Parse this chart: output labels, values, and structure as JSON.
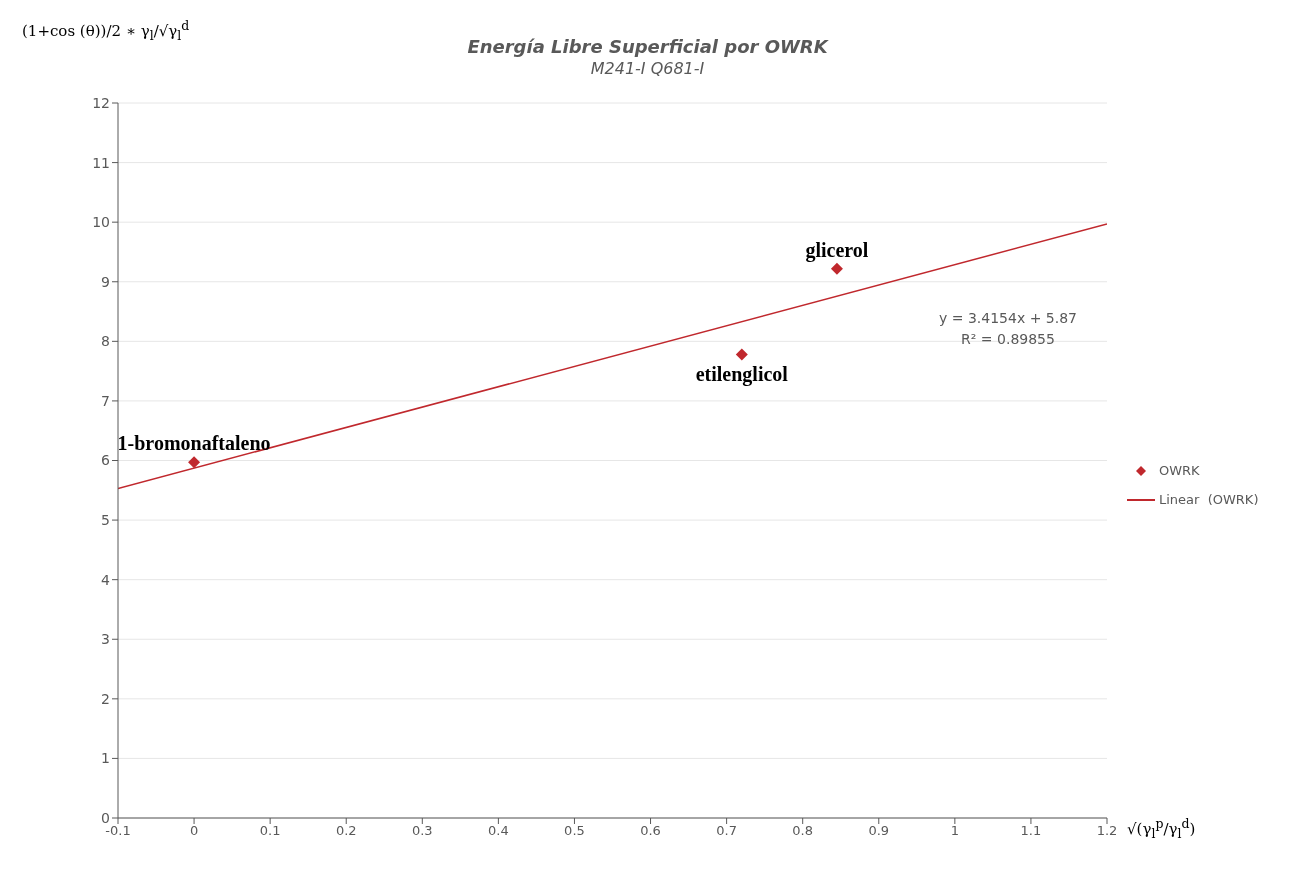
{
  "chart_data": {
    "type": "scatter",
    "title": "Energía Libre Superficial por OWRK",
    "subtitle": "M241-I  Q681-I",
    "xlabel": "√(γ$_{l}$$^{p}$/γ$_{l}$$^{d}$)",
    "ylabel": "(1+cos (θ))/2 ∗ γ$_{l}$/√γ$_{l}$$^{d}$",
    "series": [
      {
        "name": "OWRK",
        "marker": "diamond",
        "color": "#c0282d",
        "x": [
          0,
          0.72,
          0.845
        ],
        "values": [
          5.97,
          7.78,
          9.22
        ]
      },
      {
        "name": "Linear  (OWRK)",
        "type": "line",
        "marker": "none",
        "color": "#c0282d",
        "x": [
          -0.1,
          1.2
        ],
        "values": [
          5.53,
          9.97
        ]
      }
    ],
    "annotations": [
      {
        "text": "1-bromonaftaleno",
        "x": 0,
        "y": 5.97
      },
      {
        "text": "etilenglicol",
        "x": 0.72,
        "y": 7.78
      },
      {
        "text": "glicerol",
        "x": 0.845,
        "y": 9.22
      },
      "y = 3.4154x + 5.87",
      "R² = 0.89855"
    ],
    "xlim": [
      -0.1,
      1.2
    ],
    "xticks": [
      -0.1,
      0,
      0.1,
      0.2,
      0.3,
      0.4,
      0.5,
      0.6,
      0.7,
      0.8,
      0.9,
      1,
      1.1,
      1.2
    ],
    "ylim": [
      0,
      12
    ],
    "yticks": [
      0,
      1,
      2,
      3,
      4,
      5,
      6,
      7,
      8,
      9,
      10,
      11,
      12
    ],
    "grid": "y",
    "legend": "right"
  }
}
